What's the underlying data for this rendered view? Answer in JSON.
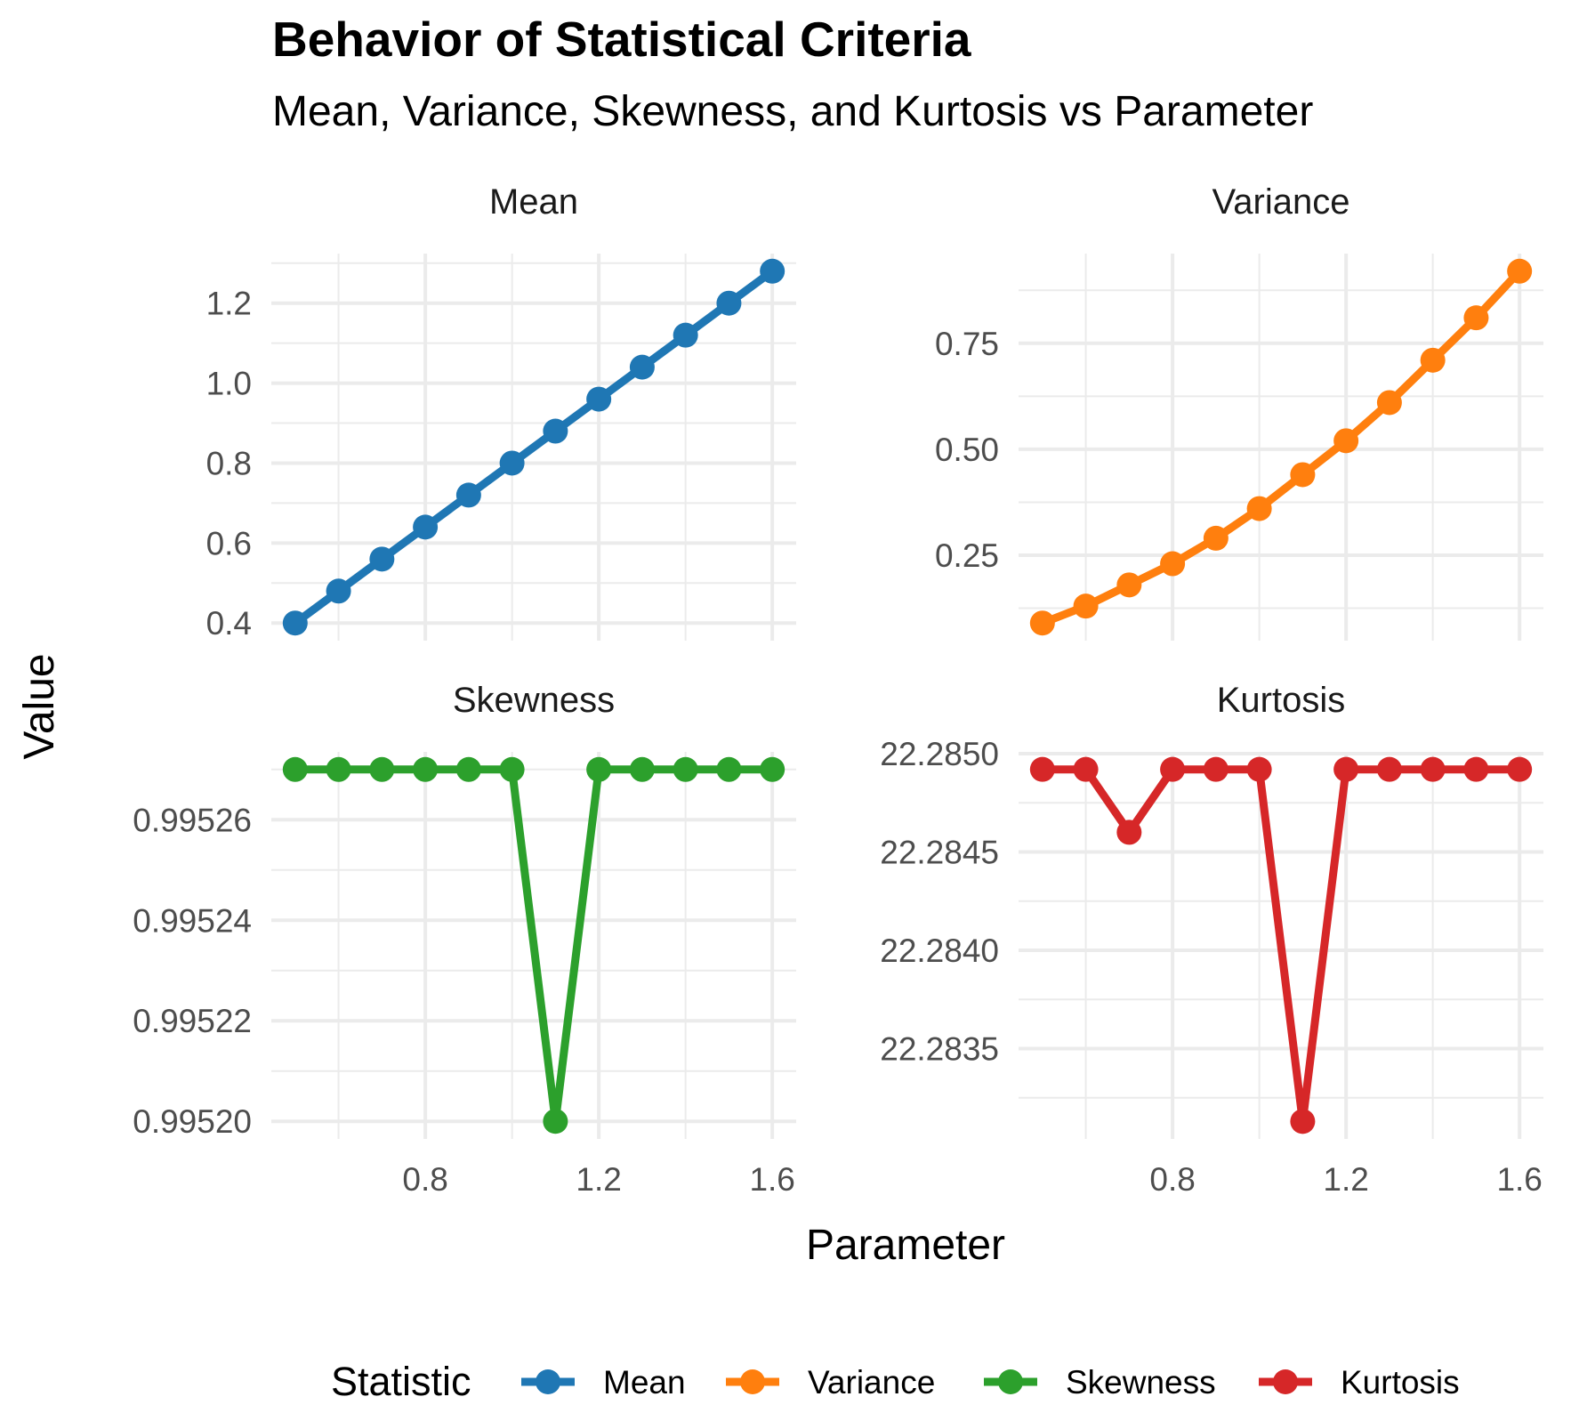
{
  "chart_data": {
    "type": "line",
    "title": "Behavior of Statistical Criteria",
    "subtitle": "Mean, Variance, Skewness, and Kurtosis vs Parameter",
    "xlabel": "Parameter",
    "ylabel": "Value",
    "legend_title": "Statistic",
    "legend_position": "bottom",
    "x": [
      0.5,
      0.6,
      0.7,
      0.8,
      0.9,
      1.0,
      1.1,
      1.2,
      1.3,
      1.4,
      1.5,
      1.6
    ],
    "x_ticks": [
      {
        "value": 0.8,
        "label": "0.8"
      },
      {
        "value": 1.2,
        "label": "1.2"
      },
      {
        "value": 1.6,
        "label": "1.6"
      }
    ],
    "xlim": [
      0.445,
      1.655
    ],
    "grid": true,
    "panels": [
      {
        "name": "Mean",
        "color": "#1f77b4",
        "values": [
          0.4,
          0.48,
          0.56,
          0.64,
          0.72,
          0.8,
          0.88,
          0.96,
          1.04,
          1.12,
          1.2,
          1.28
        ],
        "ylim": [
          0.356,
          1.324
        ],
        "y_ticks": [
          {
            "value": 0.4,
            "label": "0.4"
          },
          {
            "value": 0.6,
            "label": "0.6"
          },
          {
            "value": 0.8,
            "label": "0.8"
          },
          {
            "value": 1.0,
            "label": "1.0"
          },
          {
            "value": 1.2,
            "label": "1.2"
          }
        ]
      },
      {
        "name": "Variance",
        "color": "#ff7f0e",
        "values": [
          0.09,
          0.13,
          0.18,
          0.23,
          0.29,
          0.36,
          0.44,
          0.52,
          0.61,
          0.71,
          0.81,
          0.92
        ],
        "ylim": [
          0.0485,
          0.9615
        ],
        "y_ticks": [
          {
            "value": 0.25,
            "label": "0.25"
          },
          {
            "value": 0.5,
            "label": "0.50"
          },
          {
            "value": 0.75,
            "label": "0.75"
          }
        ]
      },
      {
        "name": "Skewness",
        "color": "#2ca02c",
        "values": [
          0.99527,
          0.99527,
          0.99527,
          0.99527,
          0.99527,
          0.99527,
          0.9952,
          0.99527,
          0.99527,
          0.99527,
          0.99527,
          0.99527
        ],
        "ylim": [
          0.9951965,
          0.9952735
        ],
        "y_ticks": [
          {
            "value": 0.9952,
            "label": "0.99520"
          },
          {
            "value": 0.99522,
            "label": "0.99522"
          },
          {
            "value": 0.99524,
            "label": "0.99524"
          },
          {
            "value": 0.99526,
            "label": "0.99526"
          }
        ]
      },
      {
        "name": "Kurtosis",
        "color": "#d62728",
        "values": [
          22.28492,
          22.28492,
          22.2846,
          22.28492,
          22.28492,
          22.28492,
          22.28313,
          22.28492,
          22.28492,
          22.28492,
          22.28492,
          22.28492
        ],
        "ylim": [
          22.283041,
          22.285009
        ],
        "y_ticks": [
          {
            "value": 22.2835,
            "label": "22.2835"
          },
          {
            "value": 22.284,
            "label": "22.2840"
          },
          {
            "value": 22.2845,
            "label": "22.2845"
          },
          {
            "value": 22.285,
            "label": "22.2850"
          }
        ]
      }
    ]
  }
}
